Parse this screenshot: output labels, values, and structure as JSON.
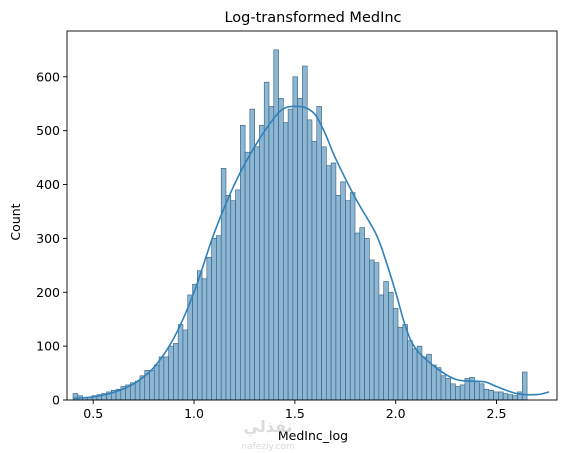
{
  "chart_data": {
    "type": "bar",
    "title": "Log-transformed MedInc",
    "xlabel": "MedInc_log",
    "ylabel": "Count",
    "xlim": [
      0.37,
      2.8
    ],
    "ylim": [
      0,
      685
    ],
    "xticks": [
      0.5,
      1.0,
      1.5,
      2.0,
      2.5
    ],
    "xtick_labels": [
      "0.5",
      "1.0",
      "1.5",
      "2.0",
      "2.5"
    ],
    "yticks": [
      0,
      100,
      200,
      300,
      400,
      500,
      600
    ],
    "ytick_labels": [
      "0",
      "100",
      "200",
      "300",
      "400",
      "500",
      "600"
    ],
    "grid": false,
    "bin_start": 0.4,
    "bin_width": 0.0237,
    "counts": [
      12,
      8,
      5,
      5,
      8,
      10,
      12,
      15,
      18,
      20,
      25,
      28,
      32,
      35,
      45,
      55,
      55,
      65,
      80,
      80,
      100,
      105,
      140,
      130,
      195,
      215,
      240,
      225,
      265,
      300,
      305,
      430,
      380,
      370,
      390,
      510,
      460,
      540,
      470,
      510,
      590,
      545,
      650,
      560,
      515,
      540,
      600,
      560,
      620,
      520,
      480,
      545,
      470,
      435,
      440,
      380,
      405,
      370,
      385,
      310,
      320,
      300,
      260,
      255,
      195,
      220,
      200,
      170,
      135,
      140,
      110,
      95,
      100,
      80,
      85,
      65,
      60,
      45,
      40,
      30,
      25,
      28,
      40,
      42,
      35,
      30,
      20,
      18,
      15,
      15,
      12,
      10,
      8,
      15,
      52
    ],
    "kde": [
      [
        0.4,
        3
      ],
      [
        0.5,
        6
      ],
      [
        0.6,
        14
      ],
      [
        0.7,
        30
      ],
      [
        0.8,
        60
      ],
      [
        0.9,
        115
      ],
      [
        1.0,
        200
      ],
      [
        1.1,
        310
      ],
      [
        1.2,
        400
      ],
      [
        1.3,
        470
      ],
      [
        1.4,
        525
      ],
      [
        1.45,
        542
      ],
      [
        1.5,
        545
      ],
      [
        1.55,
        543
      ],
      [
        1.6,
        530
      ],
      [
        1.65,
        495
      ],
      [
        1.7,
        450
      ],
      [
        1.8,
        375
      ],
      [
        1.9,
        310
      ],
      [
        1.95,
        260
      ],
      [
        2.0,
        200
      ],
      [
        2.05,
        135
      ],
      [
        2.1,
        95
      ],
      [
        2.2,
        60
      ],
      [
        2.3,
        38
      ],
      [
        2.4,
        35
      ],
      [
        2.45,
        33
      ],
      [
        2.5,
        25
      ],
      [
        2.6,
        12
      ],
      [
        2.7,
        10
      ],
      [
        2.76,
        15
      ]
    ]
  },
  "colors": {
    "bar_fill": "#8db6d3",
    "bar_edge": "#2f5e7e",
    "kde_line": "#2e81ba",
    "axis": "#000000"
  },
  "watermark": {
    "text": "نفذلي",
    "subtext": "nafezly.com"
  }
}
